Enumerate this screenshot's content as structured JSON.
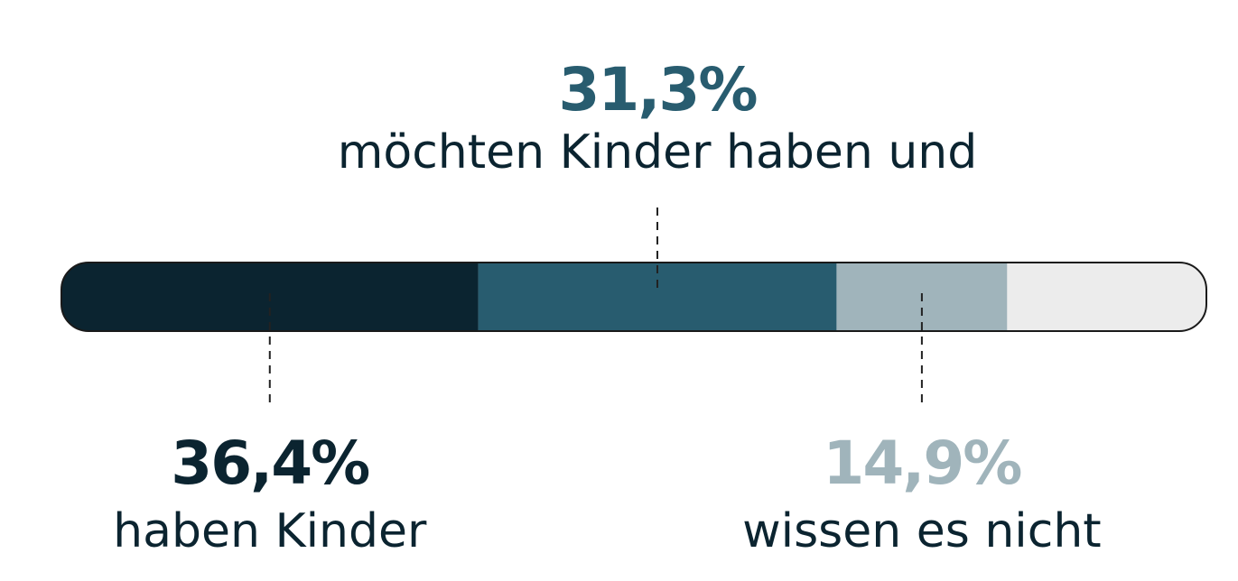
{
  "chart_data": {
    "type": "stacked_bar",
    "categories": [
      "haben Kinder",
      "möchten Kinder haben und",
      "wissen es nicht",
      null
    ],
    "values": [
      36.4,
      31.3,
      14.9,
      17.4
    ],
    "value_labels": [
      "36,4%",
      "31,3%",
      "14,9%",
      null
    ],
    "colors": [
      "#0b2430",
      "#285c6f",
      "#a0b4bb",
      "#ececec"
    ],
    "xlim": [
      0,
      100
    ]
  }
}
